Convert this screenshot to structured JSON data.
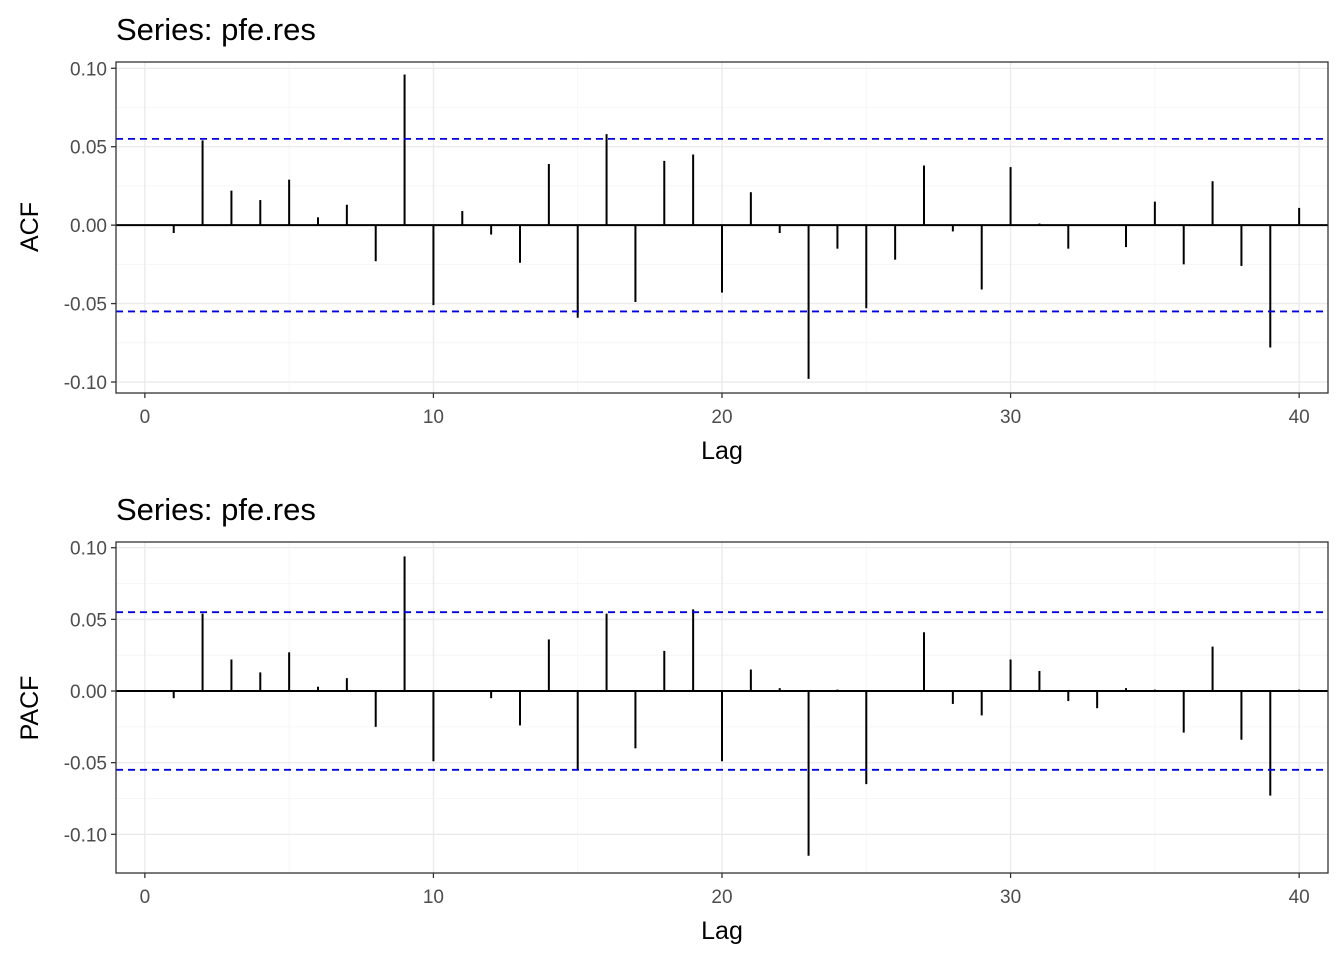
{
  "chart_data": [
    {
      "type": "bar",
      "title": "Series: pfe.res",
      "xlabel": "Lag",
      "ylabel": "ACF",
      "xlim": [
        -1,
        41
      ],
      "ylim": [
        -0.107,
        0.104
      ],
      "x_ticks": [
        0,
        10,
        20,
        30,
        40
      ],
      "x_tick_labels": [
        "0",
        "10",
        "20",
        "30",
        "40"
      ],
      "y_ticks": [
        0.1,
        0.05,
        0.0,
        -0.05,
        -0.1
      ],
      "y_tick_labels": [
        "0.10",
        "0.05",
        "0.00",
        "-0.05",
        "-0.10"
      ],
      "confidence_bounds": [
        0.055,
        -0.055
      ],
      "grid": true,
      "x": [
        1,
        2,
        3,
        4,
        5,
        6,
        7,
        8,
        9,
        10,
        11,
        12,
        13,
        14,
        15,
        16,
        17,
        18,
        19,
        20,
        21,
        22,
        23,
        24,
        25,
        26,
        27,
        28,
        29,
        30,
        31,
        32,
        33,
        34,
        35,
        36,
        37,
        38,
        39,
        40
      ],
      "values": [
        -0.005,
        0.054,
        0.022,
        0.016,
        0.029,
        0.005,
        0.013,
        -0.023,
        0.096,
        -0.051,
        0.009,
        -0.006,
        -0.024,
        0.039,
        -0.059,
        0.058,
        -0.049,
        0.041,
        0.045,
        -0.043,
        0.021,
        -0.005,
        -0.098,
        -0.015,
        -0.053,
        -0.022,
        0.038,
        -0.004,
        -0.041,
        0.037,
        0.001,
        -0.015,
        0.0,
        -0.014,
        0.015,
        -0.025,
        0.028,
        -0.026,
        -0.078,
        0.011
      ]
    },
    {
      "type": "bar",
      "title": "Series: pfe.res",
      "xlabel": "Lag",
      "ylabel": "PACF",
      "xlim": [
        -1,
        41
      ],
      "ylim": [
        -0.127,
        0.104
      ],
      "x_ticks": [
        0,
        10,
        20,
        30,
        40
      ],
      "x_tick_labels": [
        "0",
        "10",
        "20",
        "30",
        "40"
      ],
      "y_ticks": [
        0.1,
        0.05,
        0.0,
        -0.05,
        -0.1
      ],
      "y_tick_labels": [
        "0.10",
        "0.05",
        "0.00",
        "-0.05",
        "-0.10"
      ],
      "confidence_bounds": [
        0.055,
        -0.055
      ],
      "grid": true,
      "x": [
        1,
        2,
        3,
        4,
        5,
        6,
        7,
        8,
        9,
        10,
        11,
        12,
        13,
        14,
        15,
        16,
        17,
        18,
        19,
        20,
        21,
        22,
        23,
        24,
        25,
        26,
        27,
        28,
        29,
        30,
        31,
        32,
        33,
        34,
        35,
        36,
        37,
        38,
        39,
        40
      ],
      "values": [
        -0.005,
        0.054,
        0.022,
        0.013,
        0.027,
        0.003,
        0.009,
        -0.025,
        0.094,
        -0.049,
        0.0,
        -0.005,
        -0.024,
        0.036,
        -0.055,
        0.054,
        -0.04,
        0.028,
        0.057,
        -0.049,
        0.015,
        0.002,
        -0.115,
        0.001,
        -0.065,
        0.0,
        0.041,
        -0.009,
        -0.017,
        0.022,
        0.014,
        -0.007,
        -0.012,
        0.002,
        0.001,
        -0.029,
        0.031,
        -0.034,
        -0.073,
        0.001
      ]
    }
  ]
}
